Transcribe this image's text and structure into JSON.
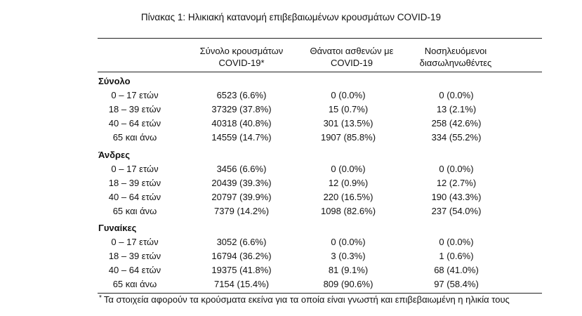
{
  "caption": "Πίνακας 1: Ηλικιακή κατανομή επιβεβαιωμένων κρουσμάτων COVID-19",
  "columns": [
    {
      "line1": "Σύνολο κρουσμάτων",
      "line2": "COVID-19*"
    },
    {
      "line1": "Θάνατοι ασθενών με",
      "line2": "COVID-19"
    },
    {
      "line1": "Νοσηλευόμενοι",
      "line2": "διασωληνωθέντες"
    }
  ],
  "groups": [
    {
      "title": "Σύνολο",
      "rows": [
        {
          "age": "0 – 17 ετών",
          "cases": "6523 (6.6%)",
          "deaths": "0 (0.0%)",
          "intubated": "0 (0.0%)"
        },
        {
          "age": "18 – 39 ετών",
          "cases": "37329 (37.8%)",
          "deaths": "15 (0.7%)",
          "intubated": "13 (2.1%)"
        },
        {
          "age": "40 – 64 ετών",
          "cases": "40318 (40.8%)",
          "deaths": "301 (13.5%)",
          "intubated": "258 (42.6%)"
        },
        {
          "age": "65 και άνω",
          "cases": "14559 (14.7%)",
          "deaths": "1907 (85.8%)",
          "intubated": "334 (55.2%)"
        }
      ]
    },
    {
      "title": "Άνδρες",
      "rows": [
        {
          "age": "0 – 17 ετών",
          "cases": "3456 (6.6%)",
          "deaths": "0 (0.0%)",
          "intubated": "0 (0.0%)"
        },
        {
          "age": "18 – 39 ετών",
          "cases": "20439 (39.3%)",
          "deaths": "12 (0.9%)",
          "intubated": "12 (2.7%)"
        },
        {
          "age": "40 – 64 ετών",
          "cases": "20797 (39.9%)",
          "deaths": "220 (16.5%)",
          "intubated": "190 (43.3%)"
        },
        {
          "age": "65 και άνω",
          "cases": "7379 (14.2%)",
          "deaths": "1098 (82.6%)",
          "intubated": "237 (54.0%)"
        }
      ]
    },
    {
      "title": "Γυναίκες",
      "rows": [
        {
          "age": "0 – 17 ετών",
          "cases": "3052 (6.6%)",
          "deaths": "0 (0.0%)",
          "intubated": "0 (0.0%)"
        },
        {
          "age": "18 – 39 ετών",
          "cases": "16794 (36.2%)",
          "deaths": "3 (0.3%)",
          "intubated": "1 (0.6%)"
        },
        {
          "age": "40 – 64 ετών",
          "cases": "19375 (41.8%)",
          "deaths": "81 (9.1%)",
          "intubated": "68 (41.0%)"
        },
        {
          "age": "65 και άνω",
          "cases": "7154 (15.4%)",
          "deaths": "809 (90.6%)",
          "intubated": "97 (58.4%)"
        }
      ]
    }
  ],
  "footnote": {
    "marker": "*",
    "text": "Τα στοιχεία αφορούν τα κρούσματα εκείνα για τα οποία είναι γνωστή και επιβεβαιωμένη η ηλικία τους"
  }
}
